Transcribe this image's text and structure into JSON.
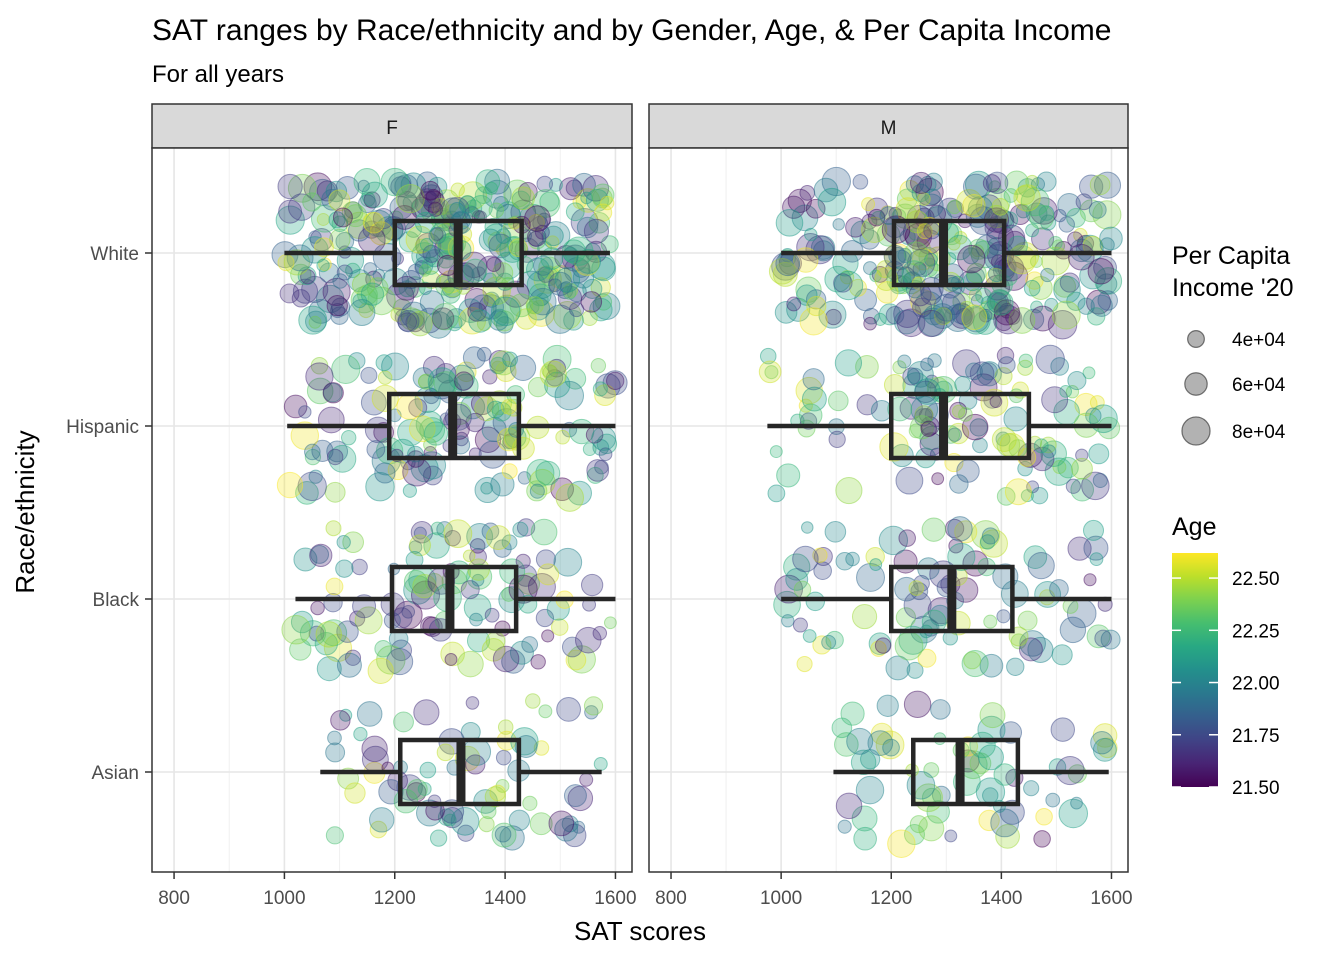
{
  "chart_data": {
    "type": "boxplot-jitter",
    "title": "SAT ranges by Race/ethnicity and by Gender, Age, & Per Capita Income",
    "subtitle": "For all years",
    "xlabel": "SAT scores",
    "ylabel": "Race/ethnicity",
    "xlim": [
      760,
      1630
    ],
    "xticks": [
      800,
      1000,
      1200,
      1400,
      1600
    ],
    "categories": [
      "White",
      "Hispanic",
      "Black",
      "Asian"
    ],
    "grid": true,
    "facets": [
      {
        "label": "F",
        "boxes": [
          {
            "category": "White",
            "min": 1000,
            "q1": 1200,
            "median": 1315,
            "q3": 1430,
            "max": 1590
          },
          {
            "category": "Hispanic",
            "min": 1005,
            "q1": 1190,
            "median": 1305,
            "q3": 1425,
            "max": 1600
          },
          {
            "category": "Black",
            "min": 1020,
            "q1": 1195,
            "median": 1300,
            "q3": 1420,
            "max": 1600
          },
          {
            "category": "Asian",
            "min": 1065,
            "q1": 1210,
            "median": 1320,
            "q3": 1425,
            "max": 1575
          }
        ]
      },
      {
        "label": "M",
        "boxes": [
          {
            "category": "White",
            "min": 1000,
            "q1": 1205,
            "median": 1295,
            "q3": 1405,
            "max": 1600
          },
          {
            "category": "Hispanic",
            "min": 975,
            "q1": 1200,
            "median": 1295,
            "q3": 1450,
            "max": 1600
          },
          {
            "category": "Black",
            "min": 1000,
            "q1": 1200,
            "median": 1310,
            "q3": 1420,
            "max": 1600
          },
          {
            "category": "Asian",
            "min": 1095,
            "q1": 1240,
            "median": 1325,
            "q3": 1430,
            "max": 1595
          }
        ]
      }
    ],
    "legend_size": {
      "title": "Per Capita Income '20",
      "entries": [
        {
          "label": "4e+04",
          "value": 40000
        },
        {
          "label": "6e+04",
          "value": 60000
        },
        {
          "label": "8e+04",
          "value": 80000
        }
      ]
    },
    "legend_color": {
      "title": "Age",
      "range": [
        21.5,
        22.62
      ],
      "ticks": [
        {
          "label": "22.50",
          "value": 22.5
        },
        {
          "label": "22.25",
          "value": 22.25
        },
        {
          "label": "22.00",
          "value": 22.0
        },
        {
          "label": "21.75",
          "value": 21.75
        },
        {
          "label": "21.50",
          "value": 21.5
        }
      ],
      "colormap": "viridis"
    },
    "legend_placement": "right"
  }
}
